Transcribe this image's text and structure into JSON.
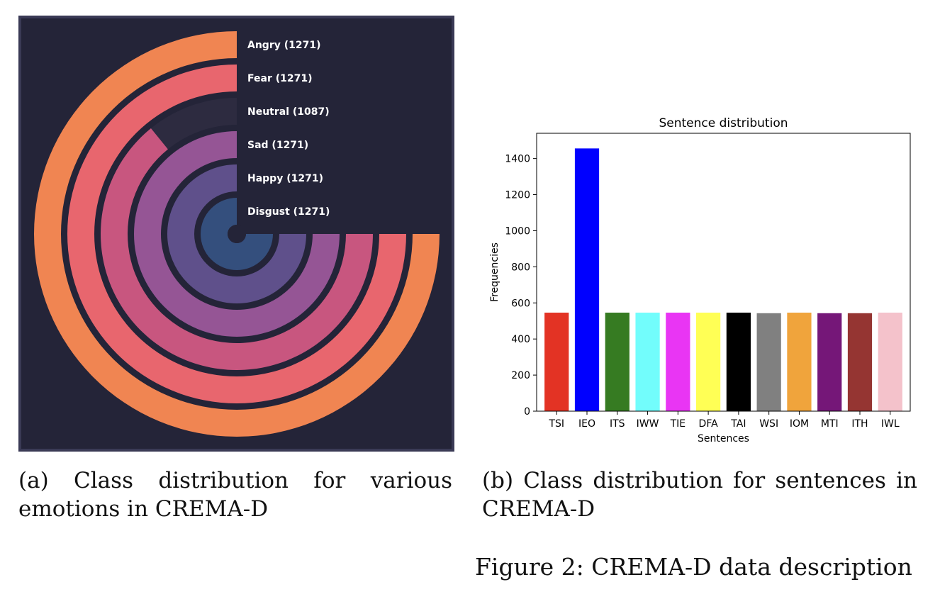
{
  "chart_data": [
    {
      "type": "radial-bar",
      "title": "",
      "max_value": 1271,
      "series": [
        {
          "label": "Angry (1271)",
          "value": 1271,
          "color": "#f08552"
        },
        {
          "label": "Fear (1271)",
          "value": 1271,
          "color": "#e8666e"
        },
        {
          "label": "Neutral (1087)",
          "value": 1087,
          "color": "#c8567f"
        },
        {
          "label": "Sad (1271)",
          "value": 1271,
          "color": "#955595"
        },
        {
          "label": "Happy (1271)",
          "value": 1271,
          "color": "#5f508b"
        },
        {
          "label": "Disgust (1271)",
          "value": 1271,
          "color": "#344f7d"
        }
      ],
      "background": "#242438",
      "track_color": "#2d2b40"
    },
    {
      "type": "bar",
      "title": "Sentence distribution",
      "xlabel": "Sentences",
      "ylabel": "Frequencies",
      "categories": [
        "TSI",
        "IEO",
        "ITS",
        "IWW",
        "TIE",
        "DFA",
        "TAI",
        "WSI",
        "IOM",
        "MTI",
        "ITH",
        "IWL"
      ],
      "values": [
        546,
        1456,
        546,
        546,
        546,
        546,
        546,
        543,
        546,
        543,
        543,
        546
      ],
      "colors": [
        "#e33324",
        "#0000ff",
        "#367b22",
        "#72fdfc",
        "#e935f4",
        "#ffff55",
        "#000000",
        "#808080",
        "#f0a43c",
        "#751778",
        "#953532",
        "#f4c2cb"
      ],
      "ylim": [
        0,
        1540
      ],
      "yticks": [
        0,
        200,
        400,
        600,
        800,
        1000,
        1200,
        1400
      ],
      "grid": false
    }
  ],
  "captions": {
    "a": "(a) Class distribution for various emotions in CREMA-D",
    "b": "(b) Class distribution for sentences in CREMA-D",
    "figure": "Figure 2: CREMA-D data description"
  }
}
